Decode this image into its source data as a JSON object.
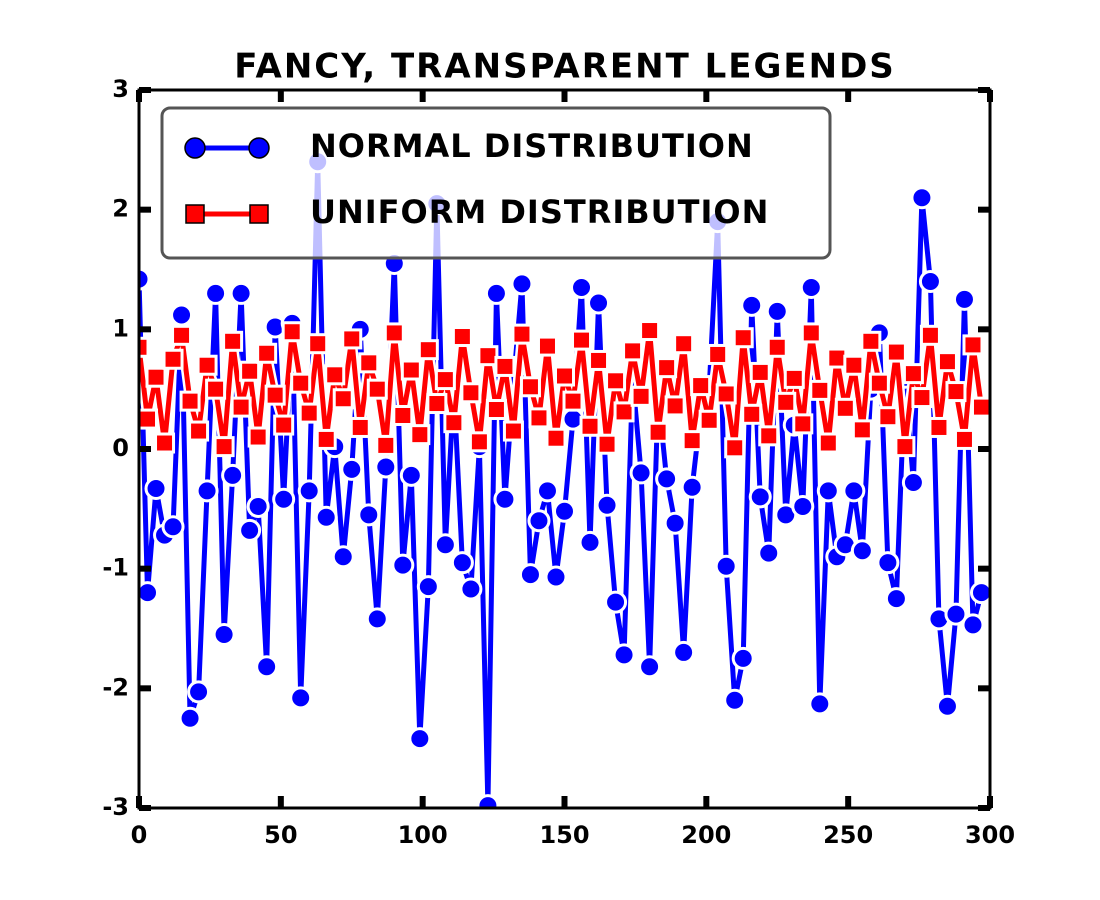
{
  "chart_data": {
    "type": "line",
    "title": "FANCY, TRANSPARENT LEGENDS",
    "x": [
      0,
      3,
      6,
      9,
      12,
      15,
      18,
      21,
      24,
      27,
      30,
      33,
      36,
      39,
      42,
      45,
      48,
      51,
      54,
      57,
      60,
      63,
      66,
      69,
      72,
      75,
      78,
      81,
      84,
      87,
      90,
      93,
      96,
      99,
      102,
      105,
      108,
      111,
      114,
      117,
      120,
      123,
      126,
      129,
      132,
      135,
      138,
      141,
      144,
      147,
      150,
      153,
      156,
      159,
      162,
      165,
      168,
      171,
      174,
      177,
      180,
      183,
      186,
      189,
      192,
      195,
      198,
      201,
      204,
      207,
      210,
      213,
      216,
      219,
      222,
      225,
      228,
      231,
      234,
      237,
      240,
      243,
      246,
      249,
      252,
      255,
      258,
      261,
      264,
      267,
      270,
      273,
      276,
      279,
      282,
      285,
      288,
      291,
      294,
      297
    ],
    "series": [
      {
        "name": "NORMAL DISTRIBUTION",
        "color": "#0000ff",
        "marker": "circle",
        "values": [
          1.42,
          -1.2,
          -0.33,
          -0.72,
          -0.65,
          1.12,
          -2.25,
          -2.03,
          -0.35,
          1.3,
          -1.55,
          -0.22,
          1.3,
          -0.68,
          -0.48,
          -1.82,
          1.02,
          -0.42,
          1.05,
          -2.08,
          -0.35,
          2.4,
          -0.57,
          0.02,
          -0.9,
          -0.17,
          1.0,
          -0.55,
          -1.42,
          -0.15,
          1.55,
          -0.97,
          -0.22,
          -2.42,
          -1.15,
          2.05,
          -0.8,
          0.5,
          -0.95,
          -1.17,
          0.02,
          -2.98,
          1.3,
          -0.42,
          0.55,
          1.38,
          -1.05,
          -0.6,
          -0.35,
          -1.07,
          -0.52,
          0.25,
          1.35,
          -0.78,
          1.22,
          -0.47,
          -1.28,
          -1.72,
          0.6,
          -0.2,
          -1.82,
          0.45,
          -0.25,
          -0.62,
          -1.7,
          -0.32,
          0.3,
          0.5,
          1.9,
          -0.98,
          -2.1,
          -1.75,
          1.2,
          -0.4,
          -0.87,
          1.15,
          -0.55,
          0.2,
          -0.48,
          1.35,
          -2.13,
          -0.35,
          -0.9,
          -0.8,
          -0.35,
          -0.85,
          0.5,
          0.97,
          -0.95,
          -1.25,
          0.6,
          -0.28,
          2.1,
          1.4,
          -1.42,
          -2.15,
          -1.38,
          1.25,
          -1.47,
          -1.2
        ]
      },
      {
        "name": "UNIFORM DISTRIBUTION",
        "color": "#ff0000",
        "marker": "square",
        "values": [
          0.85,
          0.25,
          0.6,
          0.05,
          0.75,
          0.95,
          0.4,
          0.15,
          0.7,
          0.5,
          0.02,
          0.9,
          0.35,
          0.65,
          0.1,
          0.8,
          0.45,
          0.2,
          0.98,
          0.55,
          0.3,
          0.88,
          0.08,
          0.62,
          0.42,
          0.92,
          0.18,
          0.72,
          0.5,
          0.03,
          0.97,
          0.28,
          0.66,
          0.12,
          0.83,
          0.38,
          0.58,
          0.22,
          0.94,
          0.47,
          0.06,
          0.78,
          0.33,
          0.69,
          0.15,
          0.96,
          0.52,
          0.26,
          0.86,
          0.09,
          0.61,
          0.4,
          0.91,
          0.19,
          0.74,
          0.04,
          0.57,
          0.31,
          0.82,
          0.44,
          0.99,
          0.14,
          0.68,
          0.36,
          0.88,
          0.07,
          0.53,
          0.24,
          0.79,
          0.46,
          0.01,
          0.93,
          0.29,
          0.64,
          0.11,
          0.85,
          0.39,
          0.59,
          0.21,
          0.97,
          0.49,
          0.05,
          0.76,
          0.34,
          0.7,
          0.16,
          0.9,
          0.55,
          0.27,
          0.81,
          0.02,
          0.63,
          0.43,
          0.95,
          0.18,
          0.73,
          0.48,
          0.08,
          0.87,
          0.35
        ]
      }
    ],
    "xlim": [
      0,
      300
    ],
    "xticks": [
      0,
      50,
      100,
      150,
      200,
      250,
      300
    ],
    "ylim": [
      -3,
      3
    ],
    "yticks": [
      -3,
      -2,
      -1,
      0,
      1,
      2,
      3
    ],
    "legend": "upper left",
    "grid": false
  }
}
